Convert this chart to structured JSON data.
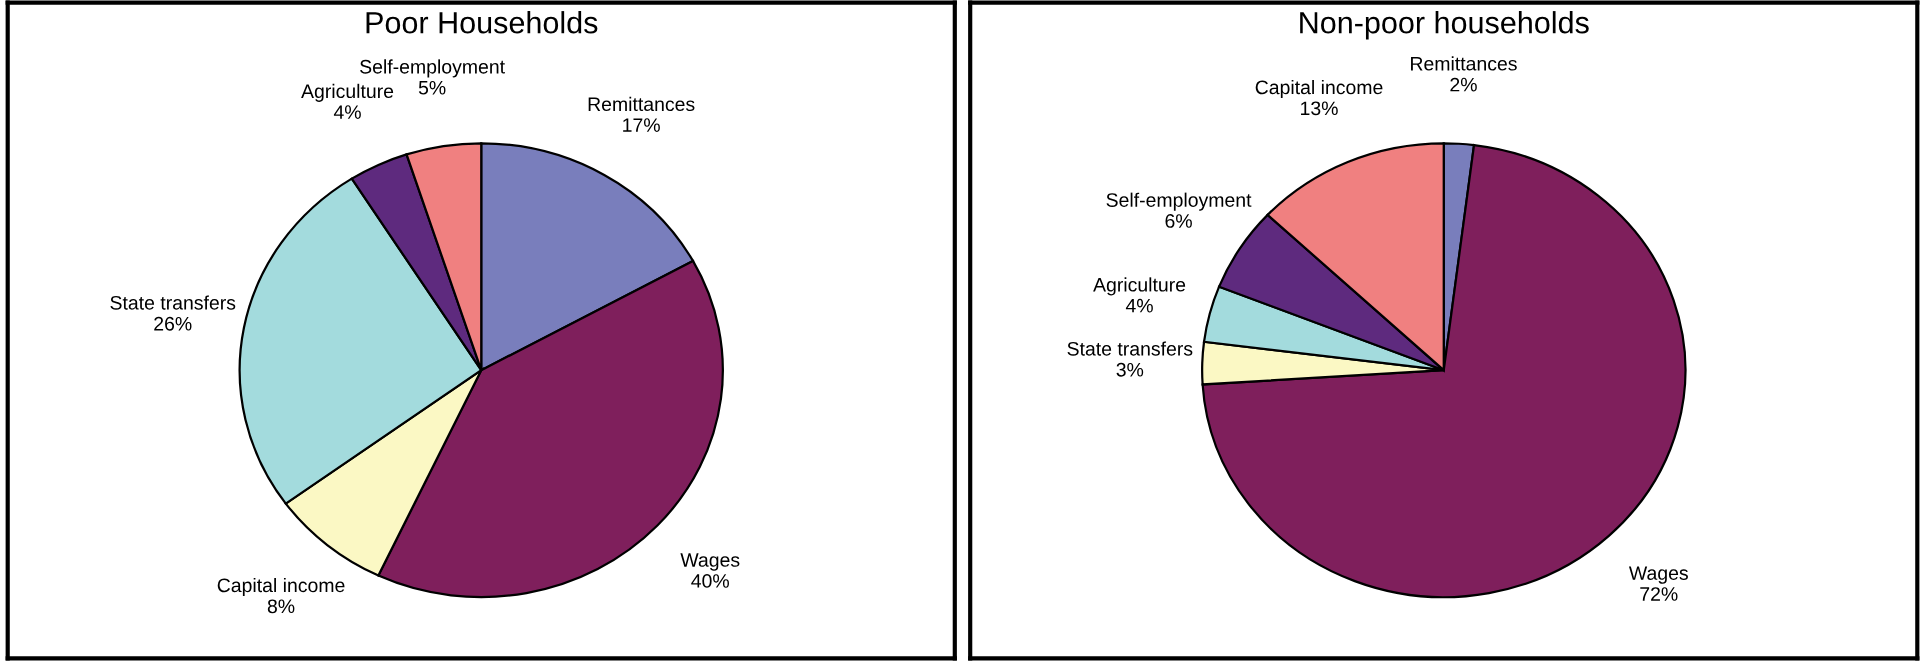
{
  "chart_data": [
    {
      "type": "pie",
      "title": "Poor Households",
      "categories": [
        "Remittances",
        "Wages",
        "Capital income",
        "State transfers",
        "Agriculture",
        "Self-employment"
      ],
      "values": [
        17,
        40,
        8,
        26,
        4,
        5
      ],
      "value_labels": [
        "17%",
        "40%",
        "8%",
        "26%",
        "4%",
        "5%"
      ],
      "colors": [
        "#797ebc",
        "#7f1f5c",
        "#fbf8c4",
        "#a3dbdd",
        "#5e2a7e",
        "#f08080"
      ]
    },
    {
      "type": "pie",
      "title": "Non-poor households",
      "categories": [
        "Remittances",
        "Wages",
        "State transfers",
        "Agriculture",
        "Self-employment",
        "Capital income"
      ],
      "values": [
        2,
        72,
        3,
        4,
        6,
        13
      ],
      "value_labels": [
        "2%",
        "72%",
        "3%",
        "4%",
        "6%",
        "13%"
      ],
      "colors": [
        "#797ebc",
        "#7f1f5c",
        "#fbf8c4",
        "#a3dbdd",
        "#5e2a7e",
        "#f08080"
      ]
    }
  ]
}
